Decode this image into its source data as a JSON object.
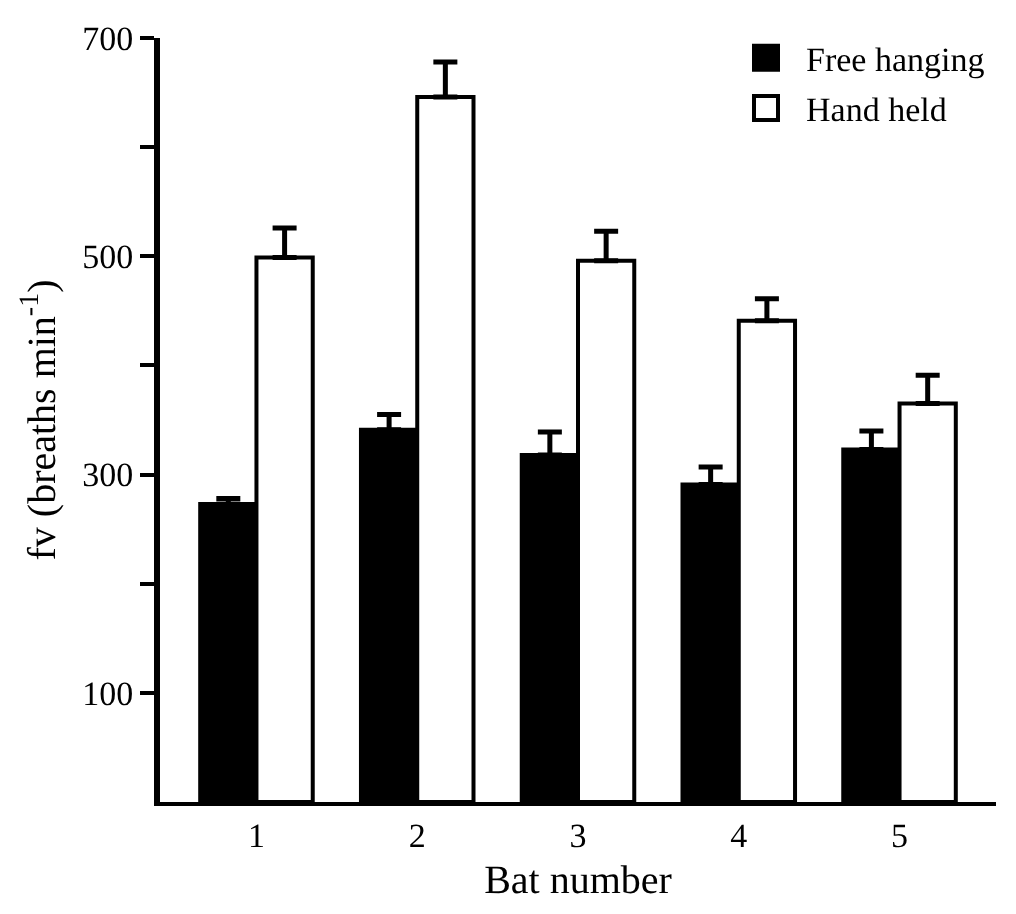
{
  "chart_data": {
    "type": "bar",
    "xlabel": "Bat number",
    "ylabel": "fv (breaths min$^{-1}$)",
    "categories": [
      "1",
      "2",
      "3",
      "4",
      "5"
    ],
    "series": [
      {
        "name": "Free hanging",
        "color": "#000000",
        "values": [
          273,
          341,
          318,
          291,
          323
        ],
        "errors": [
          [
            273,
            278
          ],
          [
            341,
            355
          ],
          [
            318,
            339
          ],
          [
            291,
            307
          ],
          [
            323,
            340
          ]
        ]
      },
      {
        "name": "Hand held",
        "color": "#ffffff",
        "values": [
          499,
          646,
          496,
          441,
          365
        ],
        "errors": [
          [
            499,
            526
          ],
          [
            646,
            678
          ],
          [
            496,
            523
          ],
          [
            441,
            461
          ],
          [
            365,
            391
          ]
        ]
      }
    ],
    "ylim": [
      0,
      700
    ],
    "yticks": [
      100,
      {
        "value": 200,
        "label": null
      },
      300,
      {
        "value": 400,
        "label": null
      },
      500,
      {
        "value": 600,
        "label": null
      },
      700
    ],
    "legend": "top right"
  }
}
